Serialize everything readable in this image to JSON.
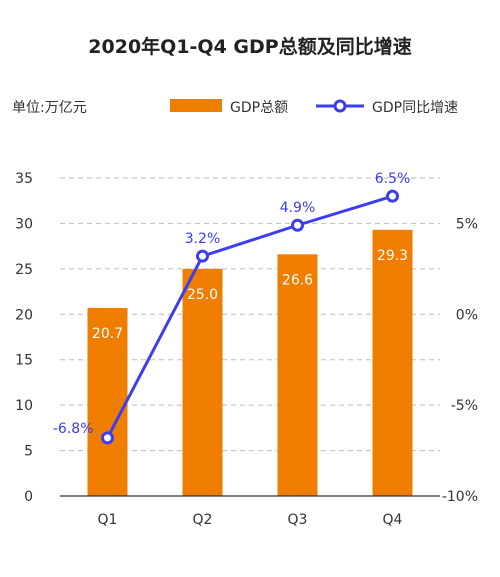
{
  "chart_data": {
    "type": "bar",
    "title": "2020年Q1-Q4 GDP总额及同比增速",
    "unit_label": "单位:万亿元",
    "categories": [
      "Q1",
      "Q2",
      "Q3",
      "Q4"
    ],
    "series": [
      {
        "name": "GDP总额",
        "type": "bar",
        "axis": "left",
        "color": "#EE7D00",
        "values": [
          20.7,
          25.0,
          26.6,
          29.3
        ],
        "labels": [
          "20.7",
          "25.0",
          "26.6",
          "29.3"
        ]
      },
      {
        "name": "GDP同比增速",
        "type": "line",
        "axis": "right",
        "color": "#3D3DF0",
        "values": [
          -6.8,
          3.2,
          4.9,
          6.5
        ],
        "labels": [
          "-6.8%",
          "3.2%",
          "4.9%",
          "6.5%"
        ]
      }
    ],
    "y_left": {
      "ylim": [
        0,
        35
      ],
      "ticks": [
        0,
        5,
        10,
        15,
        20,
        25,
        30,
        35
      ],
      "tick_labels": [
        "0",
        "5",
        "10",
        "15",
        "20",
        "25",
        "30",
        "35"
      ]
    },
    "y_right": {
      "ylim": [
        -10,
        7.5
      ],
      "ticks": [
        -10,
        -5,
        0,
        5
      ],
      "tick_labels": [
        "-10%",
        "-5%",
        "0%",
        "5%"
      ]
    },
    "grid": true,
    "legend_position": "top"
  }
}
